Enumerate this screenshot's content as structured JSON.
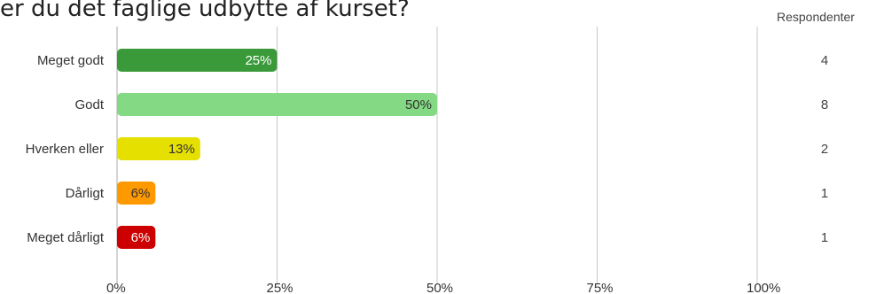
{
  "title": "er du det faglige udbytte af kurset?",
  "chart_data": {
    "type": "bar",
    "orientation": "horizontal",
    "categories": [
      "Meget godt",
      "Godt",
      "Hverken eller",
      "Dårligt",
      "Meget dårligt"
    ],
    "values": [
      25,
      50,
      13,
      6,
      6
    ],
    "data_labels": [
      "25%",
      "50%",
      "13%",
      "6%",
      "6%"
    ],
    "colors": [
      "#3a9a3a",
      "#84d984",
      "#e5e000",
      "#ff9900",
      "#cc0000"
    ],
    "label_colors": [
      "#ffffff",
      "#333333",
      "#333333",
      "#333333",
      "#ffffff"
    ],
    "xlim": [
      0,
      100
    ],
    "x_ticks": [
      0,
      25,
      50,
      75,
      100
    ],
    "x_tick_labels": [
      "0%",
      "25%",
      "50%",
      "75%",
      "100%"
    ],
    "grid": true,
    "respondents_header": "Respondenter",
    "respondents": [
      "4",
      "8",
      "2",
      "1",
      "1"
    ]
  }
}
